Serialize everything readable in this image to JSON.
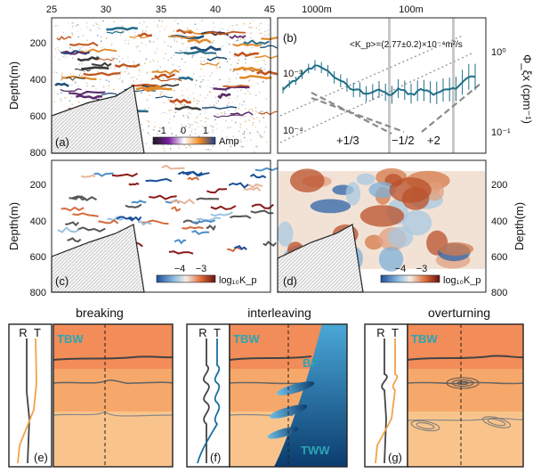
{
  "panel_a": {
    "label": "(a)",
    "top_ticks": [
      "25",
      "30",
      "35",
      "40",
      "45"
    ],
    "ylabel": "Depth(m)",
    "y_ticks": [
      "200",
      "400",
      "600",
      "800"
    ],
    "cbar_ticks": [
      "-1",
      "0",
      "1"
    ],
    "cbar_label": "Amp"
  },
  "panel_b": {
    "label": "(b)",
    "top_ticks": [
      "1000m",
      "100m"
    ],
    "formula": "<K_p>=(2.77±0.2)×10⁻⁴m²/s",
    "left_ticks": [
      "10⁻³",
      "10⁻⁴"
    ],
    "right_ticks": [
      "10⁰",
      "10⁻¹"
    ],
    "ylabel": "Φ_ξx (cpm⁻¹)",
    "slopes": [
      "+1/3",
      "−1/2",
      "+2"
    ],
    "colors": {
      "spectrum": "#1f6e86",
      "slopes": "#8a8a8a",
      "band": "#c8c8c8"
    }
  },
  "panel_c": {
    "label": "(c)",
    "ylabel": "Depth(m)",
    "y_ticks": [
      "200",
      "400",
      "600",
      "800"
    ],
    "cbar_ticks": [
      "−4",
      "−3"
    ],
    "cbar_label": "log₁₀K_p"
  },
  "panel_d": {
    "label": "(d)",
    "ylabel": "Depth(m)",
    "y_ticks": [
      "200",
      "400",
      "600",
      "800"
    ],
    "cbar_ticks": [
      "−4",
      "−3"
    ],
    "cbar_label": "log₁₀K_p"
  },
  "schematics": [
    {
      "title": "breaking",
      "label": "(e)",
      "water_masses": [
        "TBW"
      ],
      "profile_letters": [
        "R",
        "T"
      ]
    },
    {
      "title": "interleaving",
      "label": "(f)",
      "water_masses": [
        "TBW",
        "BF",
        "TWW"
      ],
      "profile_letters": [
        "R",
        "T"
      ]
    },
    {
      "title": "overturning",
      "label": "(g)",
      "water_masses": [
        "TBW"
      ],
      "profile_letters": [
        "R",
        "T"
      ]
    }
  ]
}
